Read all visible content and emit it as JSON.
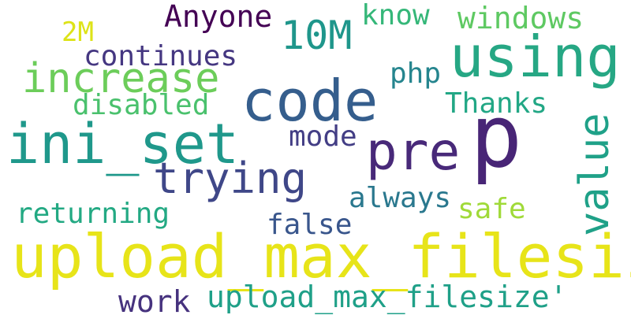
{
  "words": [
    {
      "text": "p",
      "color": "#482576"
    },
    {
      "text": "upload_max_filesize",
      "color": "#e7e419"
    },
    {
      "text": "code",
      "color": "#355e8d"
    },
    {
      "text": "using",
      "color": "#26a784"
    },
    {
      "text": "ini_set",
      "color": "#1f988b"
    },
    {
      "text": "pre",
      "color": "#482979"
    },
    {
      "text": "increase",
      "color": "#6ccd5a"
    },
    {
      "text": "trying",
      "color": "#3f4788"
    },
    {
      "text": "value",
      "color": "#1fa188"
    },
    {
      "text": "10M",
      "color": "#1f968b"
    },
    {
      "text": "upload_max_filesize'",
      "color": "#1fa088"
    },
    {
      "text": "Anyone",
      "color": "#440154"
    },
    {
      "text": "windows",
      "color": "#5ec962"
    },
    {
      "text": "know",
      "color": "#35b779"
    },
    {
      "text": "continues",
      "color": "#453781"
    },
    {
      "text": "disabled",
      "color": "#4ac16d"
    },
    {
      "text": "Thanks",
      "color": "#22a785"
    },
    {
      "text": "php",
      "color": "#25858e"
    },
    {
      "text": "mode",
      "color": "#433e85"
    },
    {
      "text": "always",
      "color": "#2a788e"
    },
    {
      "text": "returning",
      "color": "#23a983"
    },
    {
      "text": "safe",
      "color": "#a0da39"
    },
    {
      "text": "false",
      "color": "#39568c"
    },
    {
      "text": "work",
      "color": "#46327e"
    },
    {
      "text": "2M",
      "color": "#dde318"
    }
  ]
}
